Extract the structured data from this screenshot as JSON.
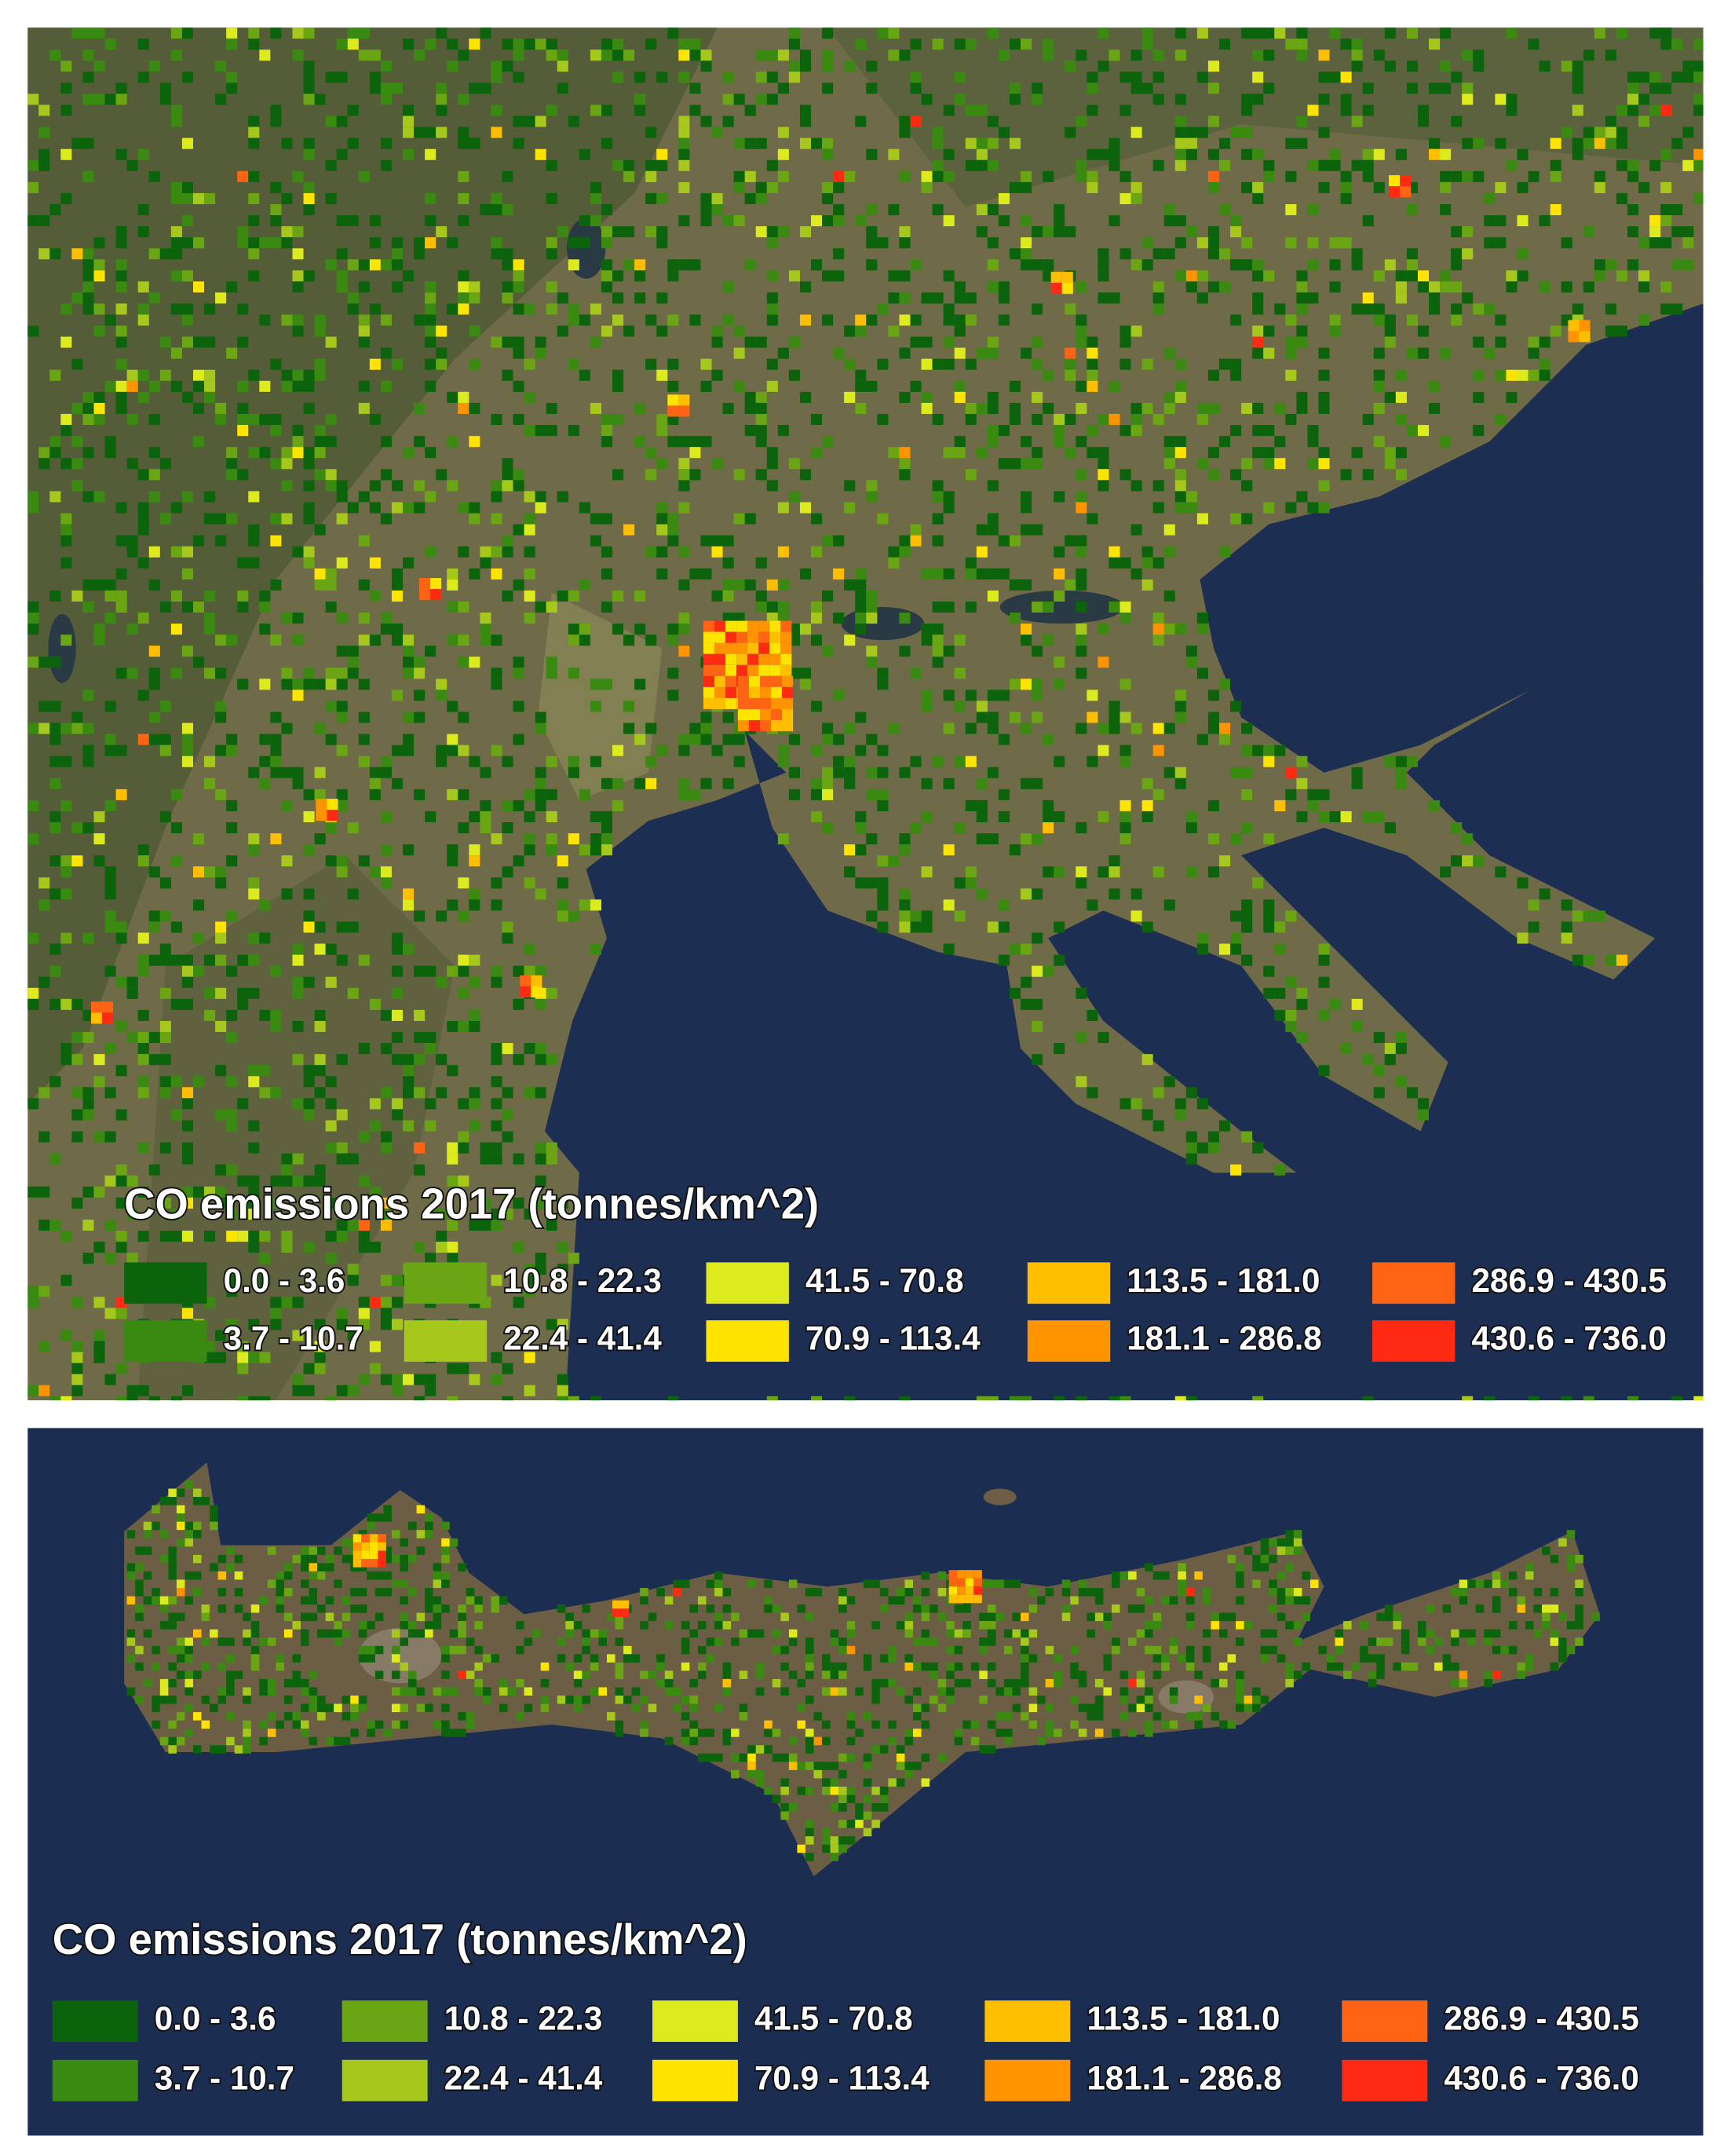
{
  "maps": [
    {
      "legend": {
        "title": "CO emissions 2017 (tonnes/km^2)",
        "items": [
          {
            "label": "0.0 - 3.6",
            "color": "#0b640b"
          },
          {
            "label": "3.7 - 10.7",
            "color": "#3a8a12"
          },
          {
            "label": "10.8 - 22.3",
            "color": "#6aa514"
          },
          {
            "label": "22.4 - 41.4",
            "color": "#a6c81c"
          },
          {
            "label": "41.5 - 70.8",
            "color": "#dcea1e"
          },
          {
            "label": "70.9 - 113.4",
            "color": "#ffe400"
          },
          {
            "label": "113.5 - 181.0",
            "color": "#ffbf00"
          },
          {
            "label": "181.1 - 286.8",
            "color": "#ff9400"
          },
          {
            "label": "286.9 - 430.5",
            "color": "#ff6414"
          },
          {
            "label": "430.6 - 736.0",
            "color": "#ff2a12"
          }
        ]
      }
    },
    {
      "legend": {
        "title": "CO emissions 2017 (tonnes/km^2)",
        "items": [
          {
            "label": "0.0 - 3.6",
            "color": "#0b640b"
          },
          {
            "label": "3.7 - 10.7",
            "color": "#3a8a12"
          },
          {
            "label": "10.8 - 22.3",
            "color": "#6aa514"
          },
          {
            "label": "22.4 - 41.4",
            "color": "#a6c81c"
          },
          {
            "label": "41.5 - 70.8",
            "color": "#dcea1e"
          },
          {
            "label": "70.9 - 113.4",
            "color": "#ffe400"
          },
          {
            "label": "113.5 - 181.0",
            "color": "#ffbf00"
          },
          {
            "label": "181.1 - 286.8",
            "color": "#ff9400"
          },
          {
            "label": "286.9 - 430.5",
            "color": "#ff6414"
          },
          {
            "label": "430.6 - 736.0",
            "color": "#ff2a12"
          }
        ]
      }
    }
  ]
}
